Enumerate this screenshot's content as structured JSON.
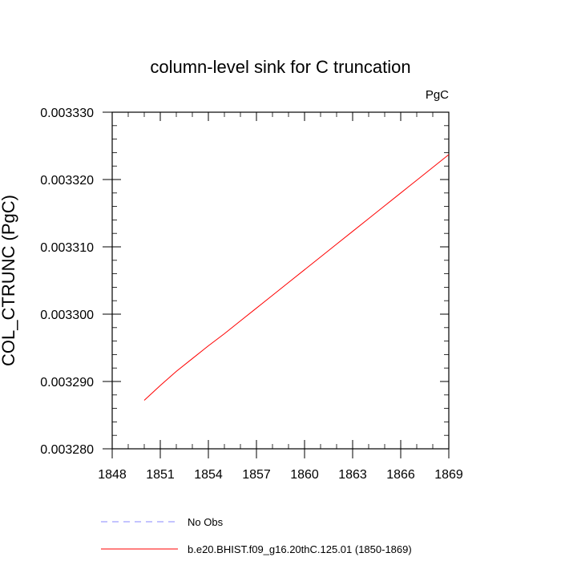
{
  "chart_data": {
    "type": "line",
    "title": "column-level sink for C truncation",
    "units": "PgC",
    "ylabel": "COL_CTRUNC  (PgC)",
    "xlabel": "",
    "xlim": [
      1848,
      1869
    ],
    "ylim": [
      0.00328,
      0.00333
    ],
    "x_ticks": [
      1848,
      1851,
      1854,
      1857,
      1860,
      1863,
      1866,
      1869
    ],
    "y_ticks": [
      0.00328,
      0.00329,
      0.0033,
      0.00331,
      0.00332,
      0.00333
    ],
    "x_tick_labels": [
      "1848",
      "1851",
      "1854",
      "1857",
      "1860",
      "1863",
      "1866",
      "1869"
    ],
    "y_tick_labels": [
      "0.003280",
      "0.003290",
      "0.003300",
      "0.003310",
      "0.003320",
      "0.003330"
    ],
    "grid": false,
    "legend_position": "bottom",
    "series": [
      {
        "name": "No Obs",
        "color": "#8888ff",
        "dash": "dashed",
        "x": [],
        "y": []
      },
      {
        "name": "b.e20.BHIST.f09_g16.20thC.125.01 (1850-1869)",
        "color": "#ff0000",
        "dash": "solid",
        "x": [
          1850,
          1851,
          1852,
          1853,
          1854,
          1855,
          1856,
          1857,
          1858,
          1859,
          1860,
          1861,
          1862,
          1863,
          1864,
          1865,
          1866,
          1867,
          1868,
          1869
        ],
        "y": [
          0.0032872,
          0.0032894,
          0.0032915,
          0.0032934,
          0.0032953,
          0.0032971,
          0.003299,
          0.0033009,
          0.0033028,
          0.0033047,
          0.0033066,
          0.0033085,
          0.0033104,
          0.0033123,
          0.0033142,
          0.0033161,
          0.003318,
          0.0033199,
          0.0033218,
          0.0033237
        ]
      }
    ]
  }
}
